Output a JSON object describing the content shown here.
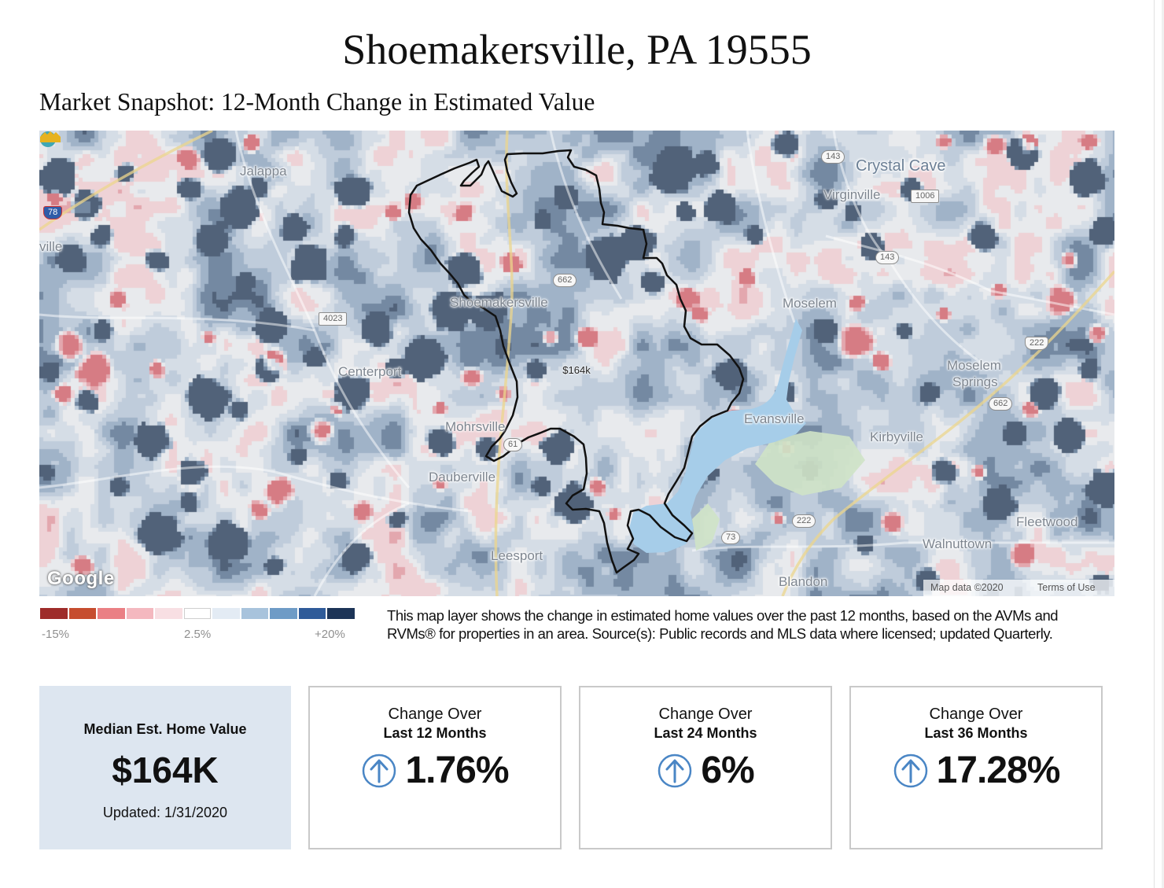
{
  "header": {
    "title": "Shoemakersville, PA 19555",
    "subtitle": "Market Snapshot: 12-Month Change in Estimated Value"
  },
  "map": {
    "places": {
      "jalappa": "Jalappa",
      "crystal_cave": "Crystal Cave",
      "virginville": "Virginville",
      "ville": "ville",
      "shoemakersville": "Shoemakersville",
      "moselem": "Moselem",
      "centerport": "Centerport",
      "moselem_springs": [
        "Moselem",
        "Springs"
      ],
      "evansville": "Evansville",
      "kirbyville": "Kirbyville",
      "mohrsville": "Mohrsville",
      "dauberville": "Dauberville",
      "fleetwood": "Fleetwood",
      "walnuttown": "Walnuttown",
      "leesport": "Leesport",
      "blandon": "Blandon"
    },
    "routes": {
      "i78": "78",
      "r143_north": "143",
      "r1006": "1006",
      "r143": "143",
      "r662_north": "662",
      "r4023": "4023",
      "us222_east": "222",
      "r662_east": "662",
      "r61": "61",
      "us222_south": "222",
      "r73": "73"
    },
    "price_marker": "$164k",
    "price_marker_icon": "houses-icon",
    "poi_icon": "cave-pin-icon",
    "logo": "Google",
    "attribution": "Map data ©2020",
    "terms": "Terms of Use"
  },
  "legend": {
    "swatches": [
      "#9e2c2a",
      "#c64d2f",
      "#ea7f84",
      "#f4b8bf",
      "#f8dfe3",
      "#ffffff",
      "#e3ebf4",
      "#a8c3dc",
      "#6e9bc6",
      "#2f5b99",
      "#1c3457"
    ],
    "min_label": "-15%",
    "mid_label": "2.5%",
    "max_label": "+20%"
  },
  "description": "This map layer shows the change in estimated home values over the past 12 months, based on the AVMs and RVMs® for properties in an area. Source(s): Public records and MLS data where licensed; updated Quarterly.",
  "summary": {
    "median": {
      "label": "Median Est. Home Value",
      "value": "$164K",
      "updated": "Updated: 1/31/2020"
    },
    "changes": [
      {
        "line1": "Change Over",
        "line2": "Last 12 Months",
        "value": "1.76%",
        "trend_icon": "arrow-up-circle-icon"
      },
      {
        "line1": "Change Over",
        "line2": "Last 24 Months",
        "value": "6%",
        "trend_icon": "arrow-up-circle-icon"
      },
      {
        "line1": "Change Over",
        "line2": "Last 36 Months",
        "value": "17.28%",
        "trend_icon": "arrow-up-circle-icon"
      }
    ]
  },
  "colors": {
    "card_bg": "#dde6f0",
    "arrow": "#4a86c5",
    "boundary": "#111111",
    "water": "#a6cde9",
    "park": "#cfe3c7",
    "price_icon": "#e7b21f",
    "cave_pin": "#3fa7b5"
  }
}
